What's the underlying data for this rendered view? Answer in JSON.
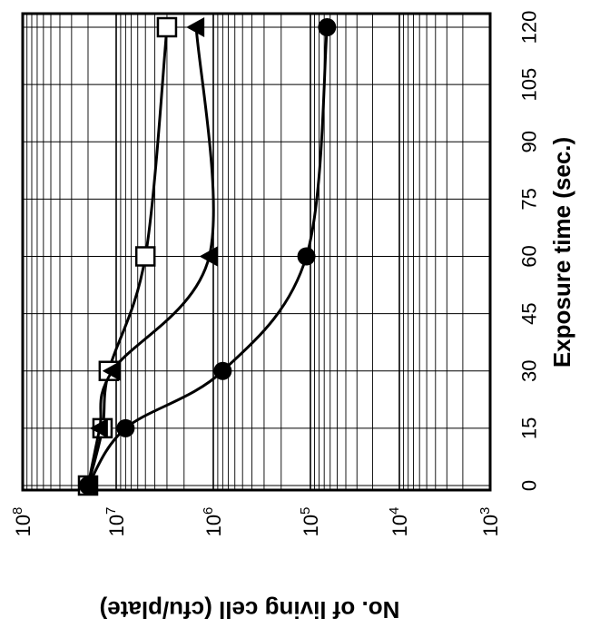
{
  "chart_data": {
    "type": "line",
    "xlabel": "Exposure time (sec.)",
    "ylabel": "No. of living cell (cfu/plate)",
    "x": [
      0,
      15,
      30,
      60,
      120
    ],
    "x_ticks": [
      "0",
      "15",
      "30",
      "45",
      "60",
      "75",
      "90",
      "105",
      "120"
    ],
    "y_ticks": [
      "10",
      "10",
      "10",
      "10",
      "10",
      "10"
    ],
    "y_tick_exponents": [
      "8",
      "7",
      "6",
      "5",
      "4",
      "3"
    ],
    "ylim": [
      1000,
      100000000
    ],
    "yscale": "log",
    "xlim": [
      0,
      120
    ],
    "grid": true,
    "series": [
      {
        "marker": "open-square",
        "values": [
          20000000,
          14000000,
          12000000,
          5000000,
          3000000
        ]
      },
      {
        "marker": "filled-triangle",
        "values": [
          20000000,
          15000000,
          11000000,
          1100000,
          1500000
        ]
      },
      {
        "marker": "filled-circle",
        "values": [
          20000000,
          8000000,
          800000,
          110000,
          65000
        ]
      }
    ]
  }
}
